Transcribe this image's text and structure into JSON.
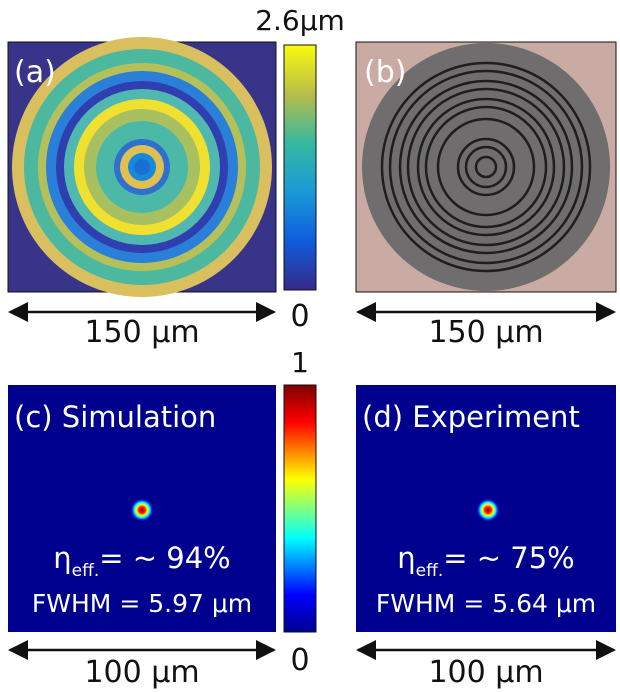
{
  "panels": [
    {
      "label": "(a)",
      "scale": "150 μm"
    },
    {
      "label": "(b)",
      "scale": "150 μm"
    },
    {
      "label": "(c) Simulation",
      "efficiency": {
        "symbol": "η",
        "subscript": "eff.",
        "text": "= ~ 94%"
      },
      "fwhm": "FWHM = 5.97 μm",
      "scale": "100 μm"
    },
    {
      "label": "(d) Experiment",
      "efficiency": {
        "symbol": "η",
        "subscript": "eff.",
        "text": "= ~ 75%"
      },
      "fwhm": "FWHM = 5.64 μm",
      "scale": "100 μm"
    }
  ],
  "colorbars": [
    {
      "max": "2.6μm",
      "min": "0"
    },
    {
      "max": "1",
      "min": "0"
    }
  ]
}
